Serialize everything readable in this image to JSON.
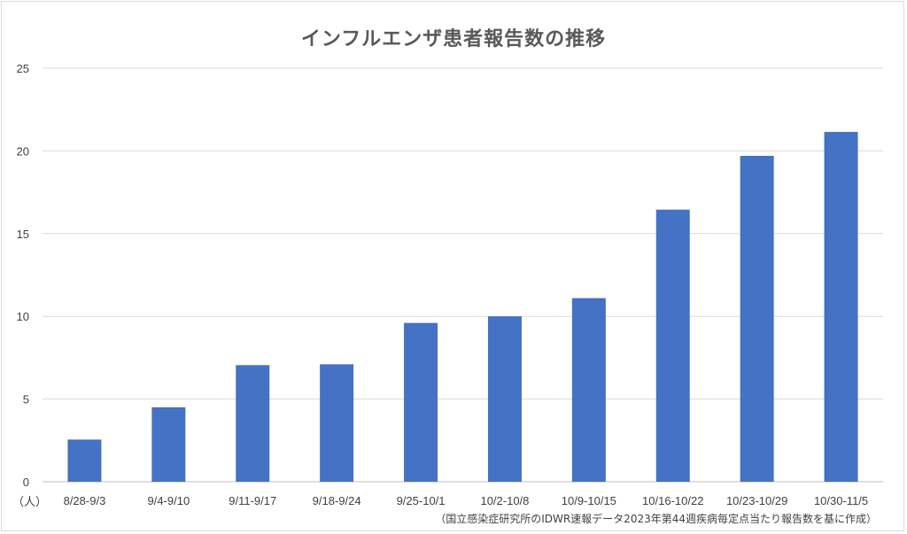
{
  "chart_data": {
    "type": "bar",
    "title": "インフルエンザ患者報告数の推移",
    "categories": [
      "8/28-9/3",
      "9/4-9/10",
      "9/11-9/17",
      "9/18-9/24",
      "9/25-10/1",
      "10/2-10/8",
      "10/9-10/15",
      "10/16-10/22",
      "10/23-10/29",
      "10/30-11/5"
    ],
    "values": [
      2.55,
      4.5,
      7.05,
      7.1,
      9.6,
      10.0,
      11.1,
      16.45,
      19.7,
      21.15
    ],
    "y_ticks": [
      0,
      5,
      10,
      15,
      20,
      25
    ],
    "ylim": [
      0,
      25
    ],
    "y_unit_label": "（人）",
    "grid": true,
    "legend": "none",
    "bar_color": "#4472C4",
    "source_note": "（国立感染症研究所のIDWR速報データ2023年第44週疾病毎定点当たり報告数を基に作成）"
  }
}
